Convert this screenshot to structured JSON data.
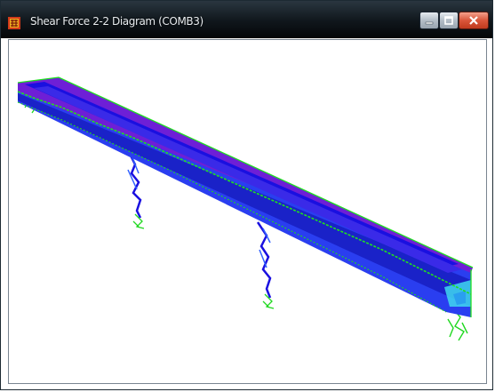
{
  "window": {
    "title": "Shear Force 2-2 Diagram   (COMB3)",
    "app_icon": "sap2000-icon",
    "controls": {
      "minimize_icon": "minimize-icon",
      "maximize_icon": "maximize-icon",
      "close_icon": "close-icon"
    }
  },
  "viewport": {
    "content": "3d-bridge-model-shear-force-diagram",
    "colors": {
      "deck_top": "#6e1fd6",
      "deck_edge": "#1a10e0",
      "deck_side": "#2a3ef0",
      "supports": "#20e020",
      "end_highlight": "#40d8f0",
      "background": "#ffffff"
    }
  }
}
